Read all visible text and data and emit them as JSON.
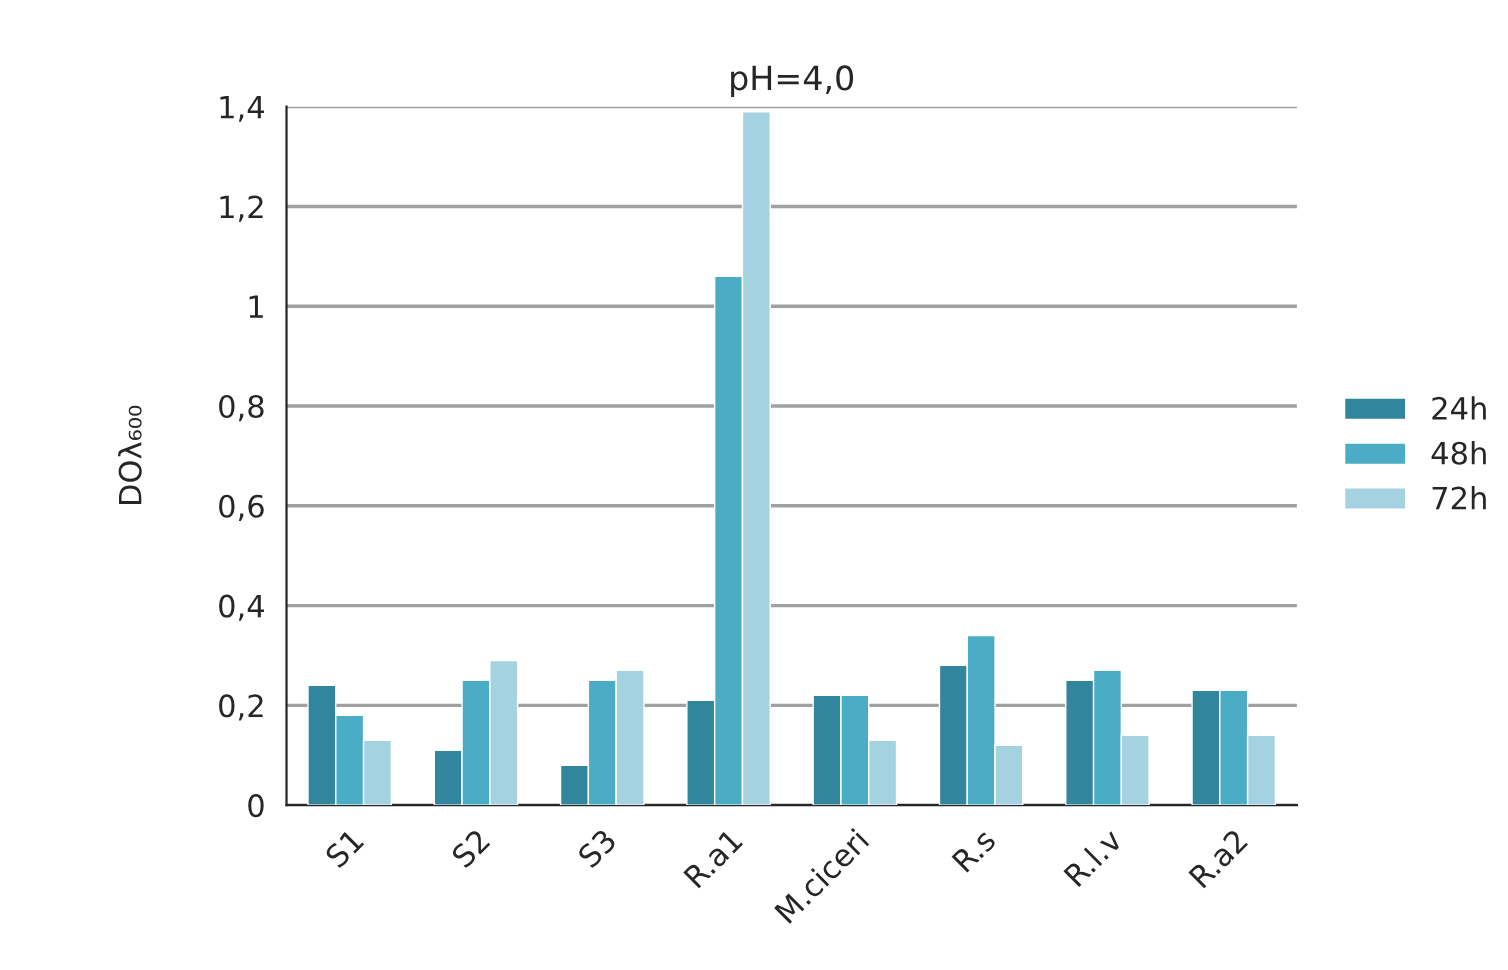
{
  "chart_data": {
    "type": "bar",
    "title": "pH=4,0",
    "ylabel": "DOλ₆₀₀",
    "categories": [
      "S1",
      "S2",
      "S3",
      "R.a1",
      "M.ciceri",
      "R.s",
      "R.l.v",
      "R.a2"
    ],
    "series": [
      {
        "name": "24h",
        "color": "#31859c",
        "values": [
          0.24,
          0.11,
          0.08,
          0.21,
          0.22,
          0.28,
          0.25,
          0.23
        ]
      },
      {
        "name": "48h",
        "color": "#4bacc6",
        "values": [
          0.18,
          0.25,
          0.25,
          1.06,
          0.22,
          0.34,
          0.27,
          0.23
        ]
      },
      {
        "name": "72h",
        "color": "#a5d2e0",
        "values": [
          0.13,
          0.29,
          0.27,
          1.39,
          0.13,
          0.12,
          0.14,
          0.14
        ]
      }
    ],
    "ylim": [
      0,
      1.4
    ],
    "yticks": [
      0,
      {
        "value": 0.2,
        "label": "0,2"
      },
      {
        "value": 0.4,
        "label": "0,4"
      },
      {
        "value": 0.6,
        "label": "0,6"
      },
      {
        "value": 0.8,
        "label": "0,8"
      },
      1,
      {
        "value": 1.2,
        "label": "1,2"
      },
      {
        "value": 1.4,
        "label": "1,4"
      }
    ],
    "grid": "y",
    "legend": "right"
  }
}
